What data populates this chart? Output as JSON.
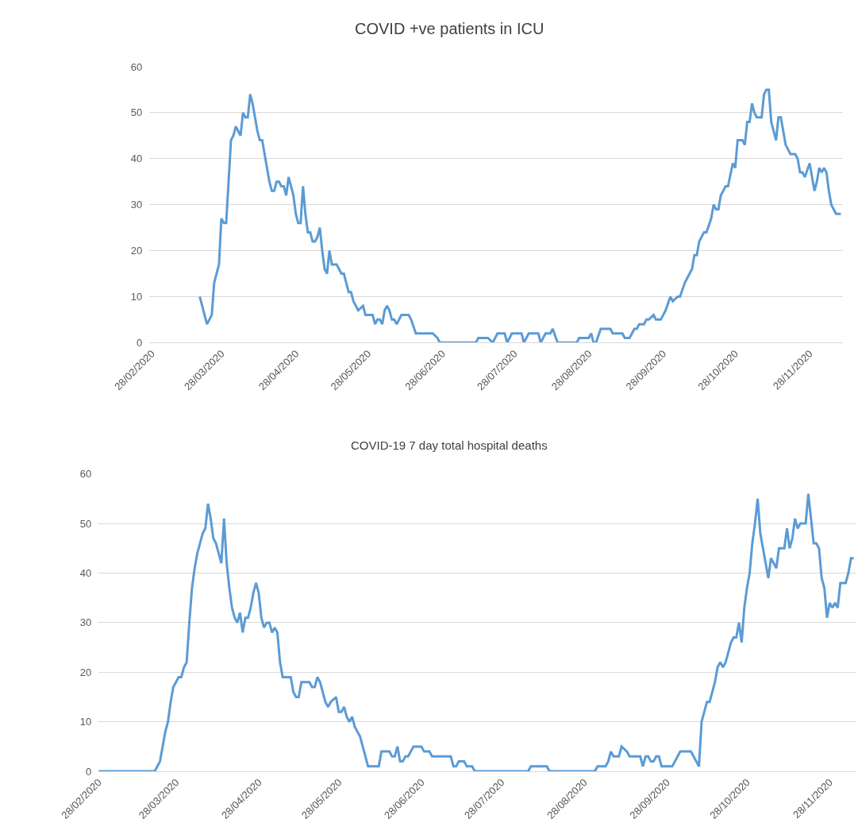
{
  "chart_data": [
    {
      "type": "line",
      "title": "COVID +ve patients in ICU",
      "x": [
        "2020-03-19",
        "2020-03-22",
        "2020-03-24",
        "2020-03-25",
        "2020-03-27",
        "2020-03-28",
        "2020-03-29",
        "2020-03-30",
        "2020-04-01",
        "2020-04-02",
        "2020-04-03",
        "2020-04-04",
        "2020-04-05",
        "2020-04-06",
        "2020-04-07",
        "2020-04-08",
        "2020-04-09",
        "2020-04-10",
        "2020-04-12",
        "2020-04-13",
        "2020-04-14",
        "2020-04-15",
        "2020-04-17",
        "2020-04-18",
        "2020-04-19",
        "2020-04-20",
        "2020-04-21",
        "2020-04-22",
        "2020-04-23",
        "2020-04-24",
        "2020-04-25",
        "2020-04-26",
        "2020-04-27",
        "2020-04-28",
        "2020-04-29",
        "2020-04-30",
        "2020-05-01",
        "2020-05-02",
        "2020-05-03",
        "2020-05-04",
        "2020-05-05",
        "2020-05-06",
        "2020-05-07",
        "2020-05-08",
        "2020-05-09",
        "2020-05-10",
        "2020-05-11",
        "2020-05-12",
        "2020-05-13",
        "2020-05-15",
        "2020-05-16",
        "2020-05-17",
        "2020-05-18",
        "2020-05-19",
        "2020-05-20",
        "2020-05-21",
        "2020-05-22",
        "2020-05-24",
        "2020-05-26",
        "2020-05-27",
        "2020-05-30",
        "2020-05-31",
        "2020-06-01",
        "2020-06-02",
        "2020-06-03",
        "2020-06-04",
        "2020-06-05",
        "2020-06-06",
        "2020-06-07",
        "2020-06-08",
        "2020-06-09",
        "2020-06-11",
        "2020-06-14",
        "2020-06-15",
        "2020-06-17",
        "2020-06-24",
        "2020-06-26",
        "2020-06-27",
        "2020-06-30",
        "2020-07-12",
        "2020-07-13",
        "2020-07-17",
        "2020-07-19",
        "2020-07-21",
        "2020-07-24",
        "2020-07-25",
        "2020-07-27",
        "2020-07-31",
        "2020-08-01",
        "2020-08-03",
        "2020-08-07",
        "2020-08-08",
        "2020-08-10",
        "2020-08-12",
        "2020-08-13",
        "2020-08-15",
        "2020-08-23",
        "2020-08-24",
        "2020-08-28",
        "2020-08-29",
        "2020-08-30",
        "2020-08-31",
        "2020-09-02",
        "2020-09-06",
        "2020-09-07",
        "2020-09-11",
        "2020-09-12",
        "2020-09-14",
        "2020-09-16",
        "2020-09-17",
        "2020-09-18",
        "2020-09-20",
        "2020-09-21",
        "2020-09-22",
        "2020-09-24",
        "2020-09-25",
        "2020-09-27",
        "2020-09-28",
        "2020-09-29",
        "2020-10-01",
        "2020-10-02",
        "2020-10-04",
        "2020-10-05",
        "2020-10-07",
        "2020-10-09",
        "2020-10-10",
        "2020-10-11",
        "2020-10-12",
        "2020-10-13",
        "2020-10-15",
        "2020-10-16",
        "2020-10-18",
        "2020-10-19",
        "2020-10-20",
        "2020-10-21",
        "2020-10-22",
        "2020-10-24",
        "2020-10-25",
        "2020-10-27",
        "2020-10-28",
        "2020-10-29",
        "2020-10-31",
        "2020-11-01",
        "2020-11-02",
        "2020-11-03",
        "2020-11-04",
        "2020-11-05",
        "2020-11-06",
        "2020-11-08",
        "2020-11-09",
        "2020-11-10",
        "2020-11-11",
        "2020-11-12",
        "2020-11-13",
        "2020-11-14",
        "2020-11-15",
        "2020-11-16",
        "2020-11-18",
        "2020-11-19",
        "2020-11-20",
        "2020-11-22",
        "2020-11-23",
        "2020-11-24",
        "2020-11-25",
        "2020-11-26",
        "2020-11-28",
        "2020-11-29",
        "2020-11-30",
        "2020-12-01",
        "2020-12-02",
        "2020-12-03",
        "2020-12-04",
        "2020-12-05",
        "2020-12-06",
        "2020-12-07",
        "2020-12-08",
        "2020-12-09",
        "2020-12-11"
      ],
      "series": [
        {
          "color": "#5b9bd5",
          "values": [
            10,
            4,
            6,
            13,
            17,
            27,
            26,
            26,
            44,
            45,
            47,
            46,
            45,
            50,
            49,
            49,
            54,
            52,
            46,
            44,
            44,
            41,
            35,
            33,
            33,
            35,
            35,
            34,
            34,
            32,
            36,
            34,
            32,
            28,
            26,
            26,
            34,
            28,
            24,
            24,
            22,
            22,
            23,
            25,
            20,
            16,
            15,
            20,
            17,
            17,
            16,
            15,
            15,
            13,
            11,
            11,
            9,
            7,
            8,
            6,
            6,
            4,
            5,
            5,
            4,
            7,
            8,
            7,
            5,
            5,
            4,
            6,
            6,
            5,
            2,
            2,
            1,
            0,
            0,
            0,
            1,
            1,
            0,
            2,
            2,
            0,
            2,
            2,
            0,
            2,
            2,
            0,
            2,
            2,
            3,
            0,
            0,
            1,
            1,
            2,
            0,
            0,
            3,
            3,
            2,
            2,
            1,
            1,
            3,
            3,
            4,
            4,
            5,
            5,
            6,
            5,
            5,
            6,
            7,
            10,
            9,
            10,
            10,
            13,
            15,
            16,
            19,
            19,
            22,
            24,
            24,
            27,
            30,
            29,
            29,
            32,
            34,
            34,
            39,
            38,
            44,
            44,
            43,
            48,
            48,
            52,
            50,
            49,
            49,
            54,
            55,
            55,
            48,
            46,
            44,
            49,
            49,
            43,
            42,
            41,
            41,
            40,
            37,
            37,
            36,
            39,
            36,
            33,
            35,
            38,
            37,
            38,
            37,
            33,
            30,
            29,
            28,
            28
          ]
        }
      ],
      "xlim": [
        "2020-02-27",
        "2020-12-12"
      ],
      "xticks": [
        {
          "value": "2020-02-28",
          "label": "28/02/2020"
        },
        {
          "value": "2020-03-28",
          "label": "28/03/2020"
        },
        {
          "value": "2020-04-28",
          "label": "28/04/2020"
        },
        {
          "value": "2020-05-28",
          "label": "28/05/2020"
        },
        {
          "value": "2020-06-28",
          "label": "28/06/2020"
        },
        {
          "value": "2020-07-28",
          "label": "28/07/2020"
        },
        {
          "value": "2020-08-28",
          "label": "28/08/2020"
        },
        {
          "value": "2020-09-28",
          "label": "28/09/2020"
        },
        {
          "value": "2020-10-28",
          "label": "28/10/2020"
        },
        {
          "value": "2020-11-28",
          "label": "28/11/2020"
        }
      ],
      "ylim": [
        0,
        60
      ],
      "yticks": [
        0,
        10,
        20,
        30,
        40,
        50,
        60
      ],
      "grid": "y",
      "marker": "none",
      "line_style": "solid"
    },
    {
      "type": "line",
      "title": "COVID-19 7 day total hospital deaths",
      "x": [
        "2020-02-28",
        "2020-03-20",
        "2020-03-22",
        "2020-03-23",
        "2020-03-24",
        "2020-03-25",
        "2020-03-26",
        "2020-03-27",
        "2020-03-29",
        "2020-03-30",
        "2020-03-31",
        "2020-04-01",
        "2020-04-02",
        "2020-04-03",
        "2020-04-04",
        "2020-04-05",
        "2020-04-06",
        "2020-04-07",
        "2020-04-08",
        "2020-04-09",
        "2020-04-10",
        "2020-04-11",
        "2020-04-12",
        "2020-04-13",
        "2020-04-14",
        "2020-04-15",
        "2020-04-16",
        "2020-04-17",
        "2020-04-18",
        "2020-04-19",
        "2020-04-20",
        "2020-04-21",
        "2020-04-22",
        "2020-04-23",
        "2020-04-24",
        "2020-04-25",
        "2020-04-26",
        "2020-04-27",
        "2020-04-28",
        "2020-04-29",
        "2020-04-30",
        "2020-05-01",
        "2020-05-02",
        "2020-05-03",
        "2020-05-04",
        "2020-05-05",
        "2020-05-06",
        "2020-05-07",
        "2020-05-09",
        "2020-05-10",
        "2020-05-11",
        "2020-05-12",
        "2020-05-13",
        "2020-05-14",
        "2020-05-15",
        "2020-05-17",
        "2020-05-18",
        "2020-05-19",
        "2020-05-20",
        "2020-05-21",
        "2020-05-22",
        "2020-05-23",
        "2020-05-24",
        "2020-05-25",
        "2020-05-27",
        "2020-05-28",
        "2020-05-29",
        "2020-05-30",
        "2020-05-31",
        "2020-06-01",
        "2020-06-02",
        "2020-06-03",
        "2020-06-05",
        "2020-06-06",
        "2020-06-07",
        "2020-06-08",
        "2020-06-12",
        "2020-06-13",
        "2020-06-16",
        "2020-06-17",
        "2020-06-18",
        "2020-06-19",
        "2020-06-20",
        "2020-06-21",
        "2020-06-22",
        "2020-06-23",
        "2020-06-25",
        "2020-06-28",
        "2020-06-29",
        "2020-07-01",
        "2020-07-02",
        "2020-07-06",
        "2020-07-09",
        "2020-07-10",
        "2020-07-11",
        "2020-07-12",
        "2020-07-14",
        "2020-07-15",
        "2020-07-17",
        "2020-07-18",
        "2020-08-07",
        "2020-08-08",
        "2020-08-14",
        "2020-08-15",
        "2020-09-01",
        "2020-09-02",
        "2020-09-05",
        "2020-09-06",
        "2020-09-07",
        "2020-09-08",
        "2020-09-10",
        "2020-09-11",
        "2020-09-13",
        "2020-09-14",
        "2020-09-18",
        "2020-09-19",
        "2020-09-20",
        "2020-09-21",
        "2020-09-22",
        "2020-09-23",
        "2020-09-24",
        "2020-09-25",
        "2020-09-26",
        "2020-09-30",
        "2020-10-03",
        "2020-10-07",
        "2020-10-10",
        "2020-10-11",
        "2020-10-13",
        "2020-10-14",
        "2020-10-16",
        "2020-10-17",
        "2020-10-18",
        "2020-10-19",
        "2020-10-20",
        "2020-10-22",
        "2020-10-23",
        "2020-10-24",
        "2020-10-25",
        "2020-10-26",
        "2020-10-27",
        "2020-10-28",
        "2020-10-29",
        "2020-10-30",
        "2020-10-31",
        "2020-11-01",
        "2020-11-02",
        "2020-11-03",
        "2020-11-04",
        "2020-11-05",
        "2020-11-06",
        "2020-11-07",
        "2020-11-08",
        "2020-11-09",
        "2020-11-11",
        "2020-11-12",
        "2020-11-13",
        "2020-11-14",
        "2020-11-15",
        "2020-11-16",
        "2020-11-17",
        "2020-11-19",
        "2020-11-20",
        "2020-11-21",
        "2020-11-22",
        "2020-11-23",
        "2020-11-24",
        "2020-11-25",
        "2020-11-26",
        "2020-11-27",
        "2020-11-28",
        "2020-11-29",
        "2020-11-30",
        "2020-12-01",
        "2020-12-02",
        "2020-12-04",
        "2020-12-05",
        "2020-12-06",
        "2020-12-07"
      ],
      "series": [
        {
          "color": "#5b9bd5",
          "values": [
            0,
            0,
            2,
            5,
            8,
            10,
            14,
            17,
            19,
            19,
            21,
            22,
            30,
            37,
            41,
            44,
            46,
            48,
            49,
            54,
            51,
            47,
            46,
            44,
            42,
            51,
            42,
            37,
            33,
            31,
            30,
            32,
            28,
            31,
            31,
            33,
            36,
            38,
            36,
            31,
            29,
            30,
            30,
            28,
            29,
            28,
            22,
            19,
            19,
            19,
            16,
            15,
            15,
            18,
            18,
            18,
            17,
            17,
            19,
            18,
            16,
            14,
            13,
            14,
            15,
            12,
            12,
            13,
            11,
            10,
            11,
            9,
            7,
            5,
            3,
            1,
            1,
            4,
            4,
            3,
            3,
            5,
            2,
            2,
            3,
            3,
            5,
            5,
            4,
            4,
            3,
            3,
            3,
            1,
            1,
            2,
            2,
            1,
            1,
            0,
            0,
            1,
            1,
            0,
            0,
            1,
            1,
            2,
            4,
            3,
            3,
            5,
            4,
            3,
            3,
            1,
            3,
            3,
            2,
            2,
            3,
            3,
            1,
            1,
            4,
            4,
            1,
            10,
            14,
            14,
            18,
            21,
            22,
            21,
            22,
            26,
            27,
            27,
            30,
            26,
            33,
            37,
            40,
            46,
            50,
            55,
            48,
            45,
            42,
            39,
            43,
            42,
            41,
            45,
            45,
            49,
            45,
            47,
            51,
            49,
            50,
            50,
            56,
            51,
            46,
            46,
            45,
            39,
            37,
            31,
            34,
            33,
            34,
            33,
            38,
            38,
            40,
            43,
            43
          ]
        }
      ],
      "xlim": [
        "2020-02-28",
        "2020-12-08"
      ],
      "xticks": [
        {
          "value": "2020-02-28",
          "label": "28/02/2020"
        },
        {
          "value": "2020-03-28",
          "label": "28/03/2020"
        },
        {
          "value": "2020-04-28",
          "label": "28/04/2020"
        },
        {
          "value": "2020-05-28",
          "label": "28/05/2020"
        },
        {
          "value": "2020-06-28",
          "label": "28/06/2020"
        },
        {
          "value": "2020-07-28",
          "label": "28/07/2020"
        },
        {
          "value": "2020-08-28",
          "label": "28/08/2020"
        },
        {
          "value": "2020-09-28",
          "label": "28/09/2020"
        },
        {
          "value": "2020-10-28",
          "label": "28/10/2020"
        },
        {
          "value": "2020-11-28",
          "label": "28/11/2020"
        }
      ],
      "ylim": [
        0,
        60
      ],
      "yticks": [
        0,
        10,
        20,
        30,
        40,
        50,
        60
      ],
      "grid": "y",
      "marker": "none",
      "line_style": "solid"
    }
  ]
}
